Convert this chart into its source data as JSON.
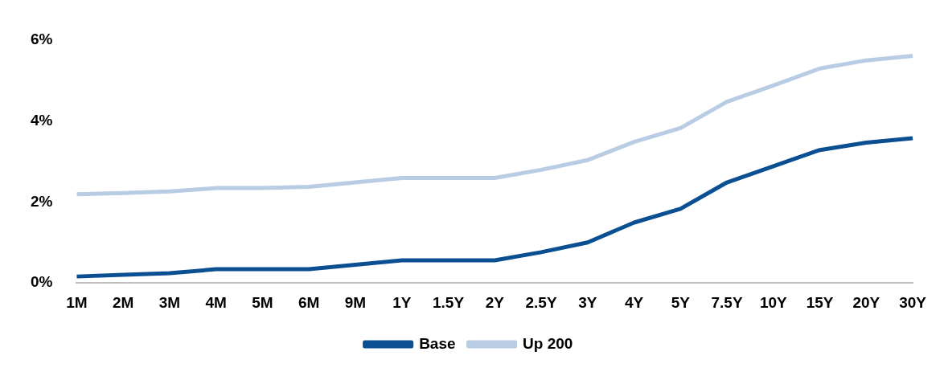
{
  "chart_data": {
    "type": "line",
    "categories": [
      "1M",
      "2M",
      "3M",
      "4M",
      "5M",
      "6M",
      "9M",
      "1Y",
      "1.5Y",
      "2Y",
      "2.5Y",
      "3Y",
      "4Y",
      "5Y",
      "7.5Y",
      "10Y",
      "15Y",
      "20Y",
      "30Y"
    ],
    "series": [
      {
        "name": "Base",
        "color": "#0b4f93",
        "values": [
          0.16,
          0.2,
          0.24,
          0.34,
          0.34,
          0.34,
          0.45,
          0.56,
          0.56,
          0.56,
          0.76,
          1.0,
          1.49,
          1.83,
          2.48,
          2.88,
          3.28,
          3.46,
          3.57
        ]
      },
      {
        "name": "Up 200",
        "color": "#b8cce4",
        "values": [
          2.19,
          2.22,
          2.26,
          2.34,
          2.34,
          2.37,
          2.48,
          2.59,
          2.59,
          2.59,
          2.79,
          3.03,
          3.48,
          3.82,
          4.47,
          4.87,
          5.29,
          5.49,
          5.6
        ]
      }
    ],
    "ylim": [
      0,
      6
    ],
    "yticks": [
      {
        "value": 0,
        "label": "0%"
      },
      {
        "value": 2,
        "label": "2%"
      },
      {
        "value": 4,
        "label": "4%"
      },
      {
        "value": 6,
        "label": "6%"
      }
    ],
    "grid": false,
    "legend": "bottom",
    "marker": "none",
    "line_style": "solid"
  }
}
